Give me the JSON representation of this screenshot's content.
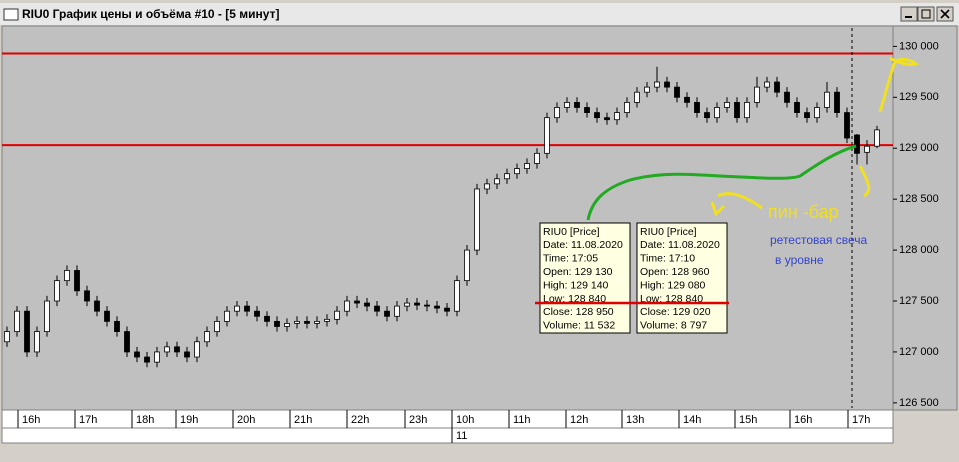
{
  "chart_data": {
    "type": "candlestick",
    "title": "RIU0 График цены и объёма #10 - [5 минут]",
    "open": [
      127100,
      127200,
      127400,
      127000,
      127200,
      127500,
      127700,
      127800,
      127600,
      127500,
      127400,
      127300,
      127200,
      127000,
      126950,
      126900,
      127000,
      127050,
      127000,
      126950,
      127100,
      127200,
      127300,
      127400,
      127450,
      127400,
      127350,
      127300,
      127250,
      127280,
      127300,
      127280,
      127300,
      127320,
      127400,
      127500,
      127480,
      127450,
      127400,
      127350,
      127450,
      127480,
      127460,
      127450,
      127430,
      127400,
      127700,
      128000,
      128600,
      128650,
      128700,
      128750,
      128800,
      128850,
      128950,
      129300,
      129400,
      129450,
      129400,
      129350,
      129300,
      129280,
      129350,
      129450,
      129550,
      129600,
      129650,
      129600,
      129500,
      129450,
      129350,
      129300,
      129400,
      129450,
      129300,
      129450,
      129600,
      129650,
      129550,
      129450,
      129350,
      129300,
      129400,
      129550,
      129350,
      129130,
      128960,
      129020
    ],
    "high": [
      127250,
      127450,
      127450,
      127250,
      127550,
      127750,
      127850,
      127850,
      127650,
      127550,
      127450,
      127350,
      127250,
      127050,
      127000,
      127050,
      127100,
      127100,
      127050,
      127150,
      127250,
      127350,
      127450,
      127500,
      127500,
      127450,
      127400,
      127350,
      127330,
      127350,
      127350,
      127350,
      127370,
      127450,
      127550,
      127550,
      127530,
      127500,
      127450,
      127500,
      127530,
      127530,
      127510,
      127500,
      127480,
      127750,
      128050,
      128650,
      128700,
      128750,
      128800,
      128850,
      128900,
      129000,
      129350,
      129450,
      129500,
      129500,
      129450,
      129400,
      129350,
      129400,
      129500,
      129600,
      129650,
      129800,
      129700,
      129650,
      129550,
      129500,
      129400,
      129450,
      129500,
      129500,
      129500,
      129700,
      129700,
      129700,
      129600,
      129500,
      129400,
      129450,
      129650,
      129600,
      129400,
      129140,
      129080,
      129220
    ],
    "low": [
      127050,
      127150,
      126950,
      126950,
      127150,
      127450,
      127650,
      127550,
      127450,
      127350,
      127250,
      127150,
      126950,
      126900,
      126850,
      126850,
      126950,
      126950,
      126900,
      126900,
      127050,
      127150,
      127250,
      127350,
      127350,
      127300,
      127250,
      127200,
      127200,
      127230,
      127230,
      127230,
      127250,
      127270,
      127350,
      127430,
      127400,
      127350,
      127300,
      127300,
      127400,
      127410,
      127400,
      127380,
      127350,
      127350,
      127650,
      127950,
      128550,
      128600,
      128650,
      128700,
      128750,
      128800,
      128900,
      129250,
      129350,
      129350,
      129300,
      129250,
      129230,
      129230,
      129300,
      129400,
      129500,
      129550,
      129550,
      129450,
      129400,
      129300,
      129250,
      129250,
      129350,
      129250,
      129250,
      129400,
      129550,
      129500,
      129400,
      129300,
      129250,
      129250,
      129350,
      129300,
      129050,
      128840,
      128840,
      129000
    ],
    "close": [
      127200,
      127400,
      127000,
      127200,
      127500,
      127700,
      127800,
      127600,
      127500,
      127400,
      127300,
      127200,
      127000,
      126950,
      126900,
      127000,
      127050,
      127000,
      126950,
      127100,
      127200,
      127300,
      127400,
      127450,
      127400,
      127350,
      127300,
      127250,
      127280,
      127300,
      127280,
      127300,
      127320,
      127400,
      127500,
      127480,
      127450,
      127400,
      127350,
      127450,
      127480,
      127460,
      127450,
      127430,
      127400,
      127700,
      128000,
      128600,
      128650,
      128700,
      128750,
      128800,
      128850,
      128950,
      129300,
      129400,
      129450,
      129400,
      129350,
      129300,
      129280,
      129350,
      129450,
      129550,
      129600,
      129650,
      129600,
      129500,
      129450,
      129350,
      129300,
      129400,
      129450,
      129300,
      129450,
      129600,
      129650,
      129550,
      129450,
      129350,
      129300,
      129400,
      129550,
      129350,
      129100,
      128950,
      129020,
      129180
    ],
    "xlim": [
      0,
      89.1
    ],
    "xticks": [
      {
        "value": 1.6,
        "label": "16h"
      },
      {
        "value": 7.3,
        "label": "17h"
      },
      {
        "value": 13.0,
        "label": "18h"
      },
      {
        "value": 17.4,
        "label": "19h"
      },
      {
        "value": 23.1,
        "label": "20h"
      },
      {
        "value": 28.8,
        "label": "21h"
      },
      {
        "value": 34.5,
        "label": "22h"
      },
      {
        "value": 40.3,
        "label": "23h"
      },
      {
        "value": 45.0,
        "label": "10h"
      },
      {
        "value": 50.7,
        "label": "11h"
      },
      {
        "value": 56.4,
        "label": "12h"
      },
      {
        "value": 62.0,
        "label": "13h"
      },
      {
        "value": 67.7,
        "label": "14h"
      },
      {
        "value": 73.3,
        "label": "15h"
      },
      {
        "value": 78.8,
        "label": "16h"
      },
      {
        "value": 84.6,
        "label": "17h"
      }
    ],
    "date_ticks": [
      {
        "value": 45.0,
        "label": "11"
      }
    ],
    "ylim": [
      126430,
      130200
    ],
    "yticks": [
      {
        "value": 126500,
        "label": "126 500"
      },
      {
        "value": 127000,
        "label": "127 000"
      },
      {
        "value": 127500,
        "label": "127 500"
      },
      {
        "value": 128000,
        "label": "128 000"
      },
      {
        "value": 128500,
        "label": "128 500"
      },
      {
        "value": 129000,
        "label": "129 000"
      },
      {
        "value": 129500,
        "label": "129 500"
      },
      {
        "value": 130000,
        "label": "130 000"
      }
    ],
    "levels": [
      129930,
      129030
    ],
    "level_color": "#e00000",
    "up_color": "#ffffff",
    "down_color": "#000000",
    "tooltips": [
      {
        "lines": [
          "RIU0 [Price]",
          "Date: 11.08.2020",
          "Time: 17:05",
          "Open:  129 130",
          "High:  129 140",
          "Low:   128 840",
          "Close: 128 950",
          "Volume: 11 532"
        ]
      },
      {
        "lines": [
          "RIU0 [Price]",
          "Date: 11.08.2020",
          "Time: 17:10",
          "Open:  128 960",
          "High:  129 080",
          "Low:   128 840",
          "Close: 129 020",
          "Volume: 8 797"
        ]
      }
    ],
    "annotations": [
      "пин -бар",
      "ретестовая свеча",
      "в уровне"
    ]
  }
}
